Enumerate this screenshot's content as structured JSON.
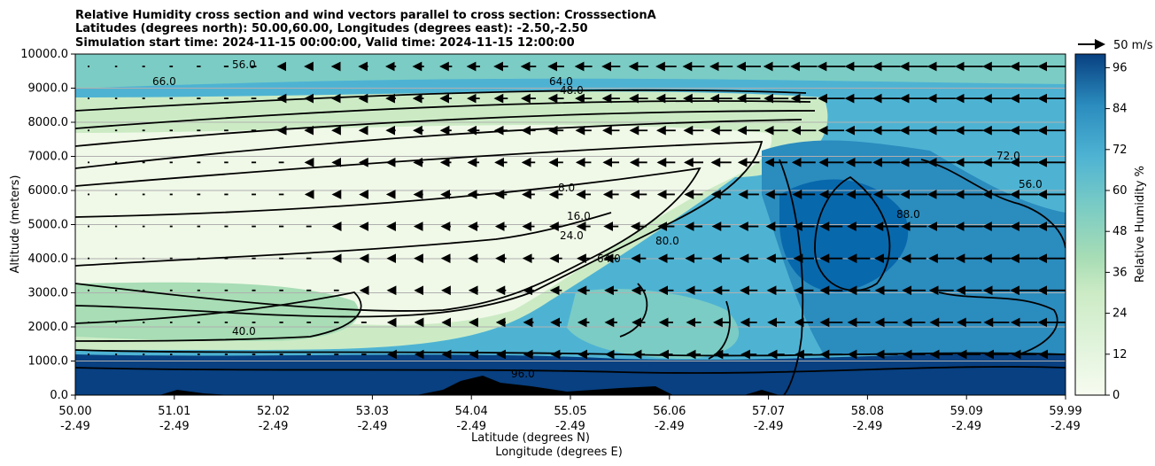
{
  "chart_data": {
    "type": "heatmap",
    "title_lines": [
      "Relative Humidity cross section and wind vectors parallel to cross section: CrosssectionA",
      "Latitudes (degrees north): 50.00,60.00, Longitudes (degrees east): -2.50,-2.50",
      "Simulation start time: 2024-11-15 00:00:00, Valid time: 2024-11-15 12:00:00"
    ],
    "ylabel": "Altitude (meters)",
    "xlabel_lines": [
      "Latitude (degrees N)",
      "Longitude (degrees E)"
    ],
    "ylim": [
      0,
      10000
    ],
    "y_ticks": [
      "0.0",
      "1000.0",
      "2000.0",
      "3000.0",
      "4000.0",
      "5000.0",
      "6000.0",
      "7000.0",
      "8000.0",
      "9000.0",
      "10000.0"
    ],
    "x_ticks": [
      {
        "lat": "50.00",
        "lon": "-2.49"
      },
      {
        "lat": "51.01",
        "lon": "-2.49"
      },
      {
        "lat": "52.02",
        "lon": "-2.49"
      },
      {
        "lat": "53.03",
        "lon": "-2.49"
      },
      {
        "lat": "54.04",
        "lon": "-2.49"
      },
      {
        "lat": "55.05",
        "lon": "-2.49"
      },
      {
        "lat": "56.06",
        "lon": "-2.49"
      },
      {
        "lat": "57.07",
        "lon": "-2.49"
      },
      {
        "lat": "58.08",
        "lon": "-2.49"
      },
      {
        "lat": "59.09",
        "lon": "-2.49"
      },
      {
        "lat": "59.99",
        "lon": "-2.49"
      }
    ],
    "grid": "horizontal",
    "colorbar": {
      "label": "Relative Humidity %",
      "ticks": [
        "0",
        "12",
        "24",
        "36",
        "48",
        "60",
        "72",
        "84",
        "96"
      ],
      "range": [
        0,
        100
      ],
      "colormap": "GnBu"
    },
    "quiver_key": "50 m/s",
    "contour_labels": [
      "56.0",
      "66.0",
      "64.0",
      "48.0",
      "72.0",
      "8.0",
      "16.0",
      "24.0",
      "40.0",
      "80.0",
      "88.0",
      "96.0"
    ]
  },
  "colors": {
    "low": "#f7fcf0",
    "mid": "#a8ddb5",
    "high": "#084081",
    "contour": "#000000",
    "grid": "#b0b0b0"
  }
}
